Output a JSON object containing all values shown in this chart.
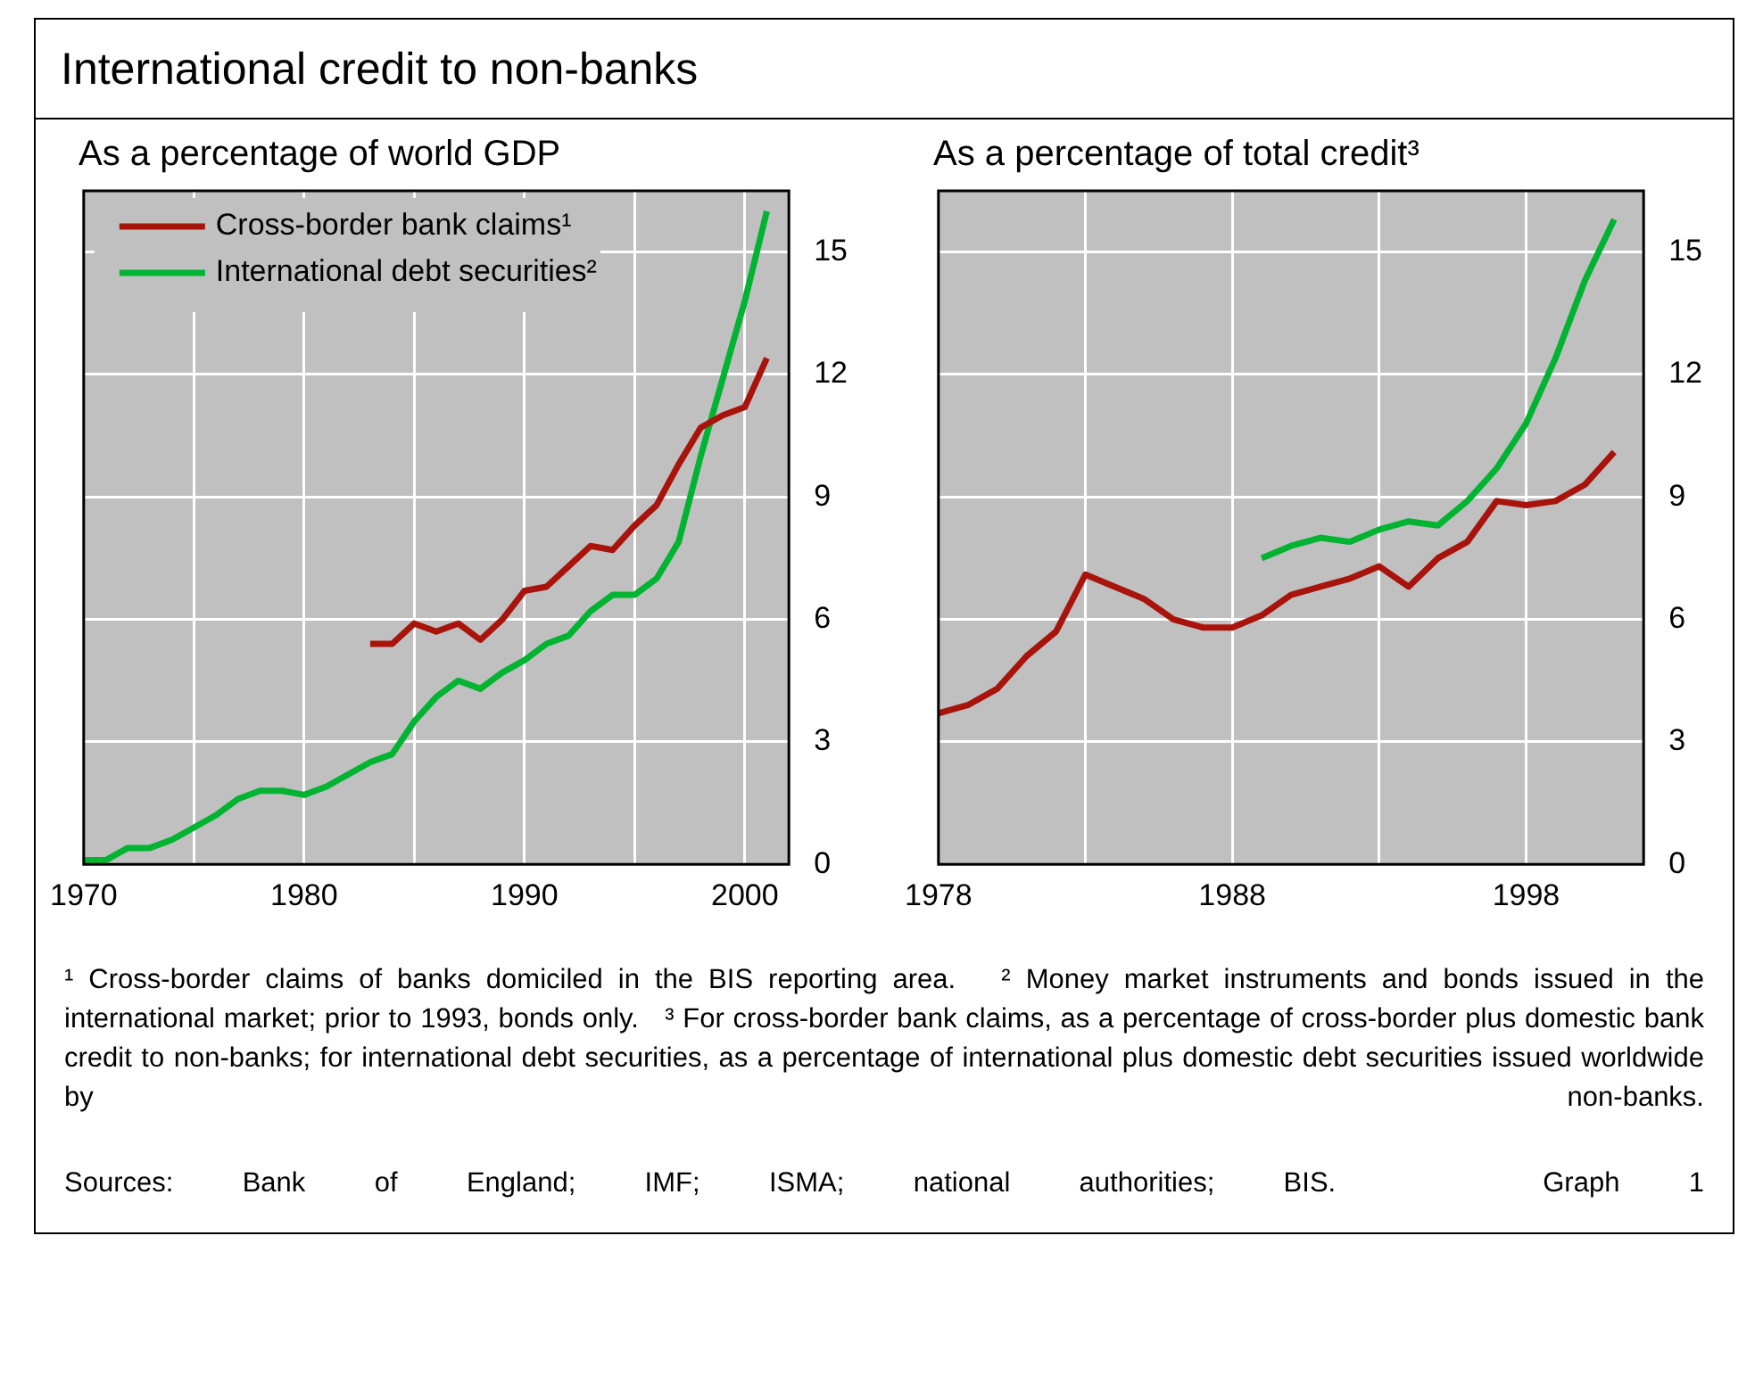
{
  "chart_data": [
    {
      "type": "other",
      "title": "International credit to non-banks"
    },
    {
      "type": "line",
      "title": "As a percentage of world GDP",
      "marker": "none",
      "line_style": "solid",
      "grid": true,
      "legend": "top left",
      "xlim": [
        1970,
        2002
      ],
      "xticks": [
        1970,
        {
          "value": 1975,
          "label": null
        },
        1980,
        {
          "value": 1985,
          "label": null
        },
        1990,
        {
          "value": 1995,
          "label": null
        },
        2000
      ],
      "ylim": [
        0,
        16.5
      ],
      "yticks": [
        0,
        3,
        6,
        9,
        12,
        15
      ],
      "series": [
        {
          "name": "Cross-border bank claims¹",
          "color": "#a8140c",
          "x": [
            1983,
            1984,
            1985,
            1986,
            1987,
            1988,
            1989,
            1990,
            1991,
            1992,
            1993,
            1994,
            1995,
            1996,
            1997,
            1998,
            1999,
            2000,
            2001
          ],
          "values": [
            5.4,
            5.4,
            5.9,
            5.7,
            5.9,
            5.5,
            6.0,
            6.7,
            6.8,
            7.3,
            7.8,
            7.7,
            8.3,
            8.8,
            9.8,
            10.7,
            11.0,
            11.2,
            12.4
          ]
        },
        {
          "name": "International debt securities²",
          "color": "#00b432",
          "x": [
            1970,
            1971,
            1972,
            1973,
            1974,
            1975,
            1976,
            1977,
            1978,
            1979,
            1980,
            1981,
            1982,
            1983,
            1984,
            1985,
            1986,
            1987,
            1988,
            1989,
            1990,
            1991,
            1992,
            1993,
            1994,
            1995,
            1996,
            1997,
            1998,
            1999,
            2000,
            2001
          ],
          "values": [
            0.1,
            0.1,
            0.4,
            0.4,
            0.6,
            0.9,
            1.2,
            1.6,
            1.8,
            1.8,
            1.7,
            1.9,
            2.2,
            2.5,
            2.7,
            3.5,
            4.1,
            4.5,
            4.3,
            4.7,
            5.0,
            5.4,
            5.6,
            6.2,
            6.6,
            6.6,
            7.0,
            7.9,
            10.0,
            11.9,
            13.8,
            16.0
          ]
        }
      ]
    },
    {
      "type": "line",
      "title": "As a percentage of total credit³",
      "marker": "none",
      "line_style": "solid",
      "grid": true,
      "xlim": [
        1978,
        2002
      ],
      "xticks": [
        1978,
        {
          "value": 1983,
          "label": null
        },
        1988,
        {
          "value": 1993,
          "label": null
        },
        1998
      ],
      "ylim": [
        0,
        16.5
      ],
      "yticks": [
        0,
        3,
        6,
        9,
        12,
        15
      ],
      "series": [
        {
          "color": "#a8140c",
          "x": [
            1978,
            1979,
            1980,
            1981,
            1982,
            1983,
            1984,
            1985,
            1986,
            1987,
            1988,
            1989,
            1990,
            1991,
            1992,
            1993,
            1994,
            1995,
            1996,
            1997,
            1998,
            1999,
            2000,
            2001
          ],
          "values": [
            3.7,
            3.9,
            4.3,
            5.1,
            5.7,
            7.1,
            6.8,
            6.5,
            6.0,
            5.8,
            5.8,
            6.1,
            6.6,
            6.8,
            7.0,
            7.3,
            6.8,
            7.5,
            7.9,
            8.9,
            8.8,
            8.9,
            9.3,
            10.1
          ]
        },
        {
          "color": "#00b432",
          "x": [
            1989,
            1990,
            1991,
            1992,
            1993,
            1994,
            1995,
            1996,
            1997,
            1998,
            1999,
            2000,
            2001
          ],
          "values": [
            7.5,
            7.8,
            8.0,
            7.9,
            8.2,
            8.4,
            8.3,
            8.9,
            9.7,
            10.8,
            12.4,
            14.3,
            15.8
          ]
        }
      ]
    },
    {
      "type": "other",
      "annotations": [
        "¹ Cross-border claims of banks domiciled in the BIS reporting area.",
        "² Money market instruments and bonds issued in the international market; prior to 1993, bonds only.",
        "³ For cross-border bank claims, as a percentage of cross-border plus domestic bank credit to non-banks; for international debt securities, as a percentage of international plus domestic debt securities issued worldwide by non-banks."
      ]
    },
    {
      "type": "other",
      "annotations": [
        "Sources: Bank of England; IMF; ISMA; national authorities; BIS.",
        "Graph 1"
      ]
    }
  ]
}
